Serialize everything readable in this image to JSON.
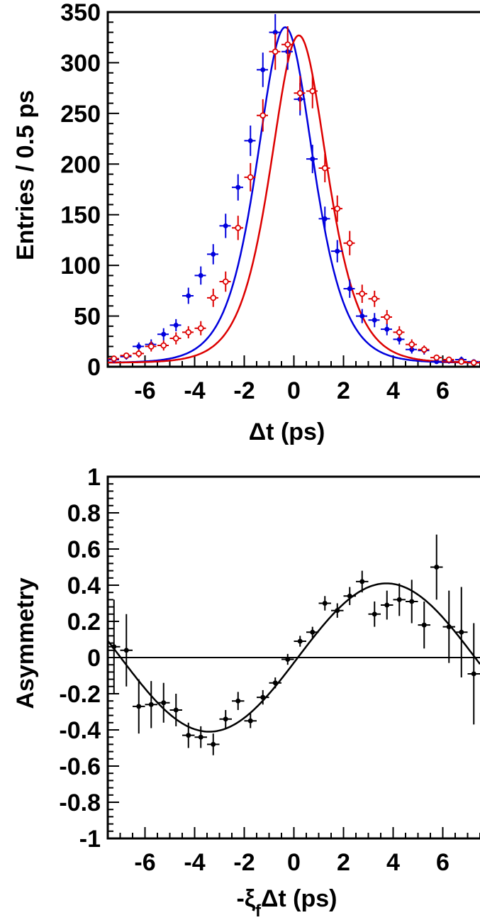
{
  "chart_data": [
    {
      "type": "scatter",
      "xlabel": "Δt (ps)",
      "ylabel": "Entries / 0.5 ps",
      "xlim": [
        -7.5,
        7.5
      ],
      "ylim": [
        0,
        350
      ],
      "xticks": [
        -6,
        -4,
        -2,
        0,
        2,
        4,
        6
      ],
      "yticks": [
        0,
        50,
        100,
        150,
        200,
        250,
        300,
        350
      ],
      "series": [
        {
          "color": "#0000dd",
          "marker": "filled-circle",
          "x": [
            -7.25,
            -6.75,
            -6.25,
            -5.75,
            -5.25,
            -4.75,
            -4.25,
            -3.75,
            -3.25,
            -2.75,
            -2.25,
            -1.75,
            -1.25,
            -0.75,
            -0.25,
            0.25,
            0.75,
            1.25,
            1.75,
            2.25,
            2.75,
            3.25,
            3.75,
            4.25,
            4.75,
            5.25,
            5.75,
            6.25,
            6.75,
            7.25
          ],
          "y": [
            7,
            10,
            20,
            22,
            32,
            41,
            70,
            90,
            111,
            139,
            177,
            223,
            293,
            330,
            311,
            264,
            205,
            146,
            114,
            77,
            50,
            46,
            37,
            27,
            17,
            16,
            5,
            6,
            7,
            5
          ],
          "err": [
            3,
            3,
            4,
            5,
            6,
            6,
            8,
            9,
            10,
            12,
            13,
            15,
            17,
            18,
            18,
            16,
            14,
            12,
            11,
            9,
            7,
            7,
            6,
            5,
            4,
            4,
            2,
            3,
            3,
            2
          ]
        },
        {
          "color": "#dd0000",
          "marker": "open-circle",
          "x": [
            -7.25,
            -6.75,
            -6.25,
            -5.75,
            -5.25,
            -4.75,
            -4.25,
            -3.75,
            -3.25,
            -2.75,
            -2.25,
            -1.75,
            -1.25,
            -0.75,
            -0.25,
            0.25,
            0.75,
            1.25,
            1.75,
            2.25,
            2.75,
            3.25,
            3.75,
            4.25,
            4.75,
            5.25,
            5.75,
            6.25,
            6.75,
            7.25
          ],
          "y": [
            8,
            11,
            13,
            20,
            21,
            28,
            34,
            38,
            68,
            84,
            137,
            187,
            248,
            311,
            318,
            270,
            272,
            196,
            156,
            122,
            72,
            67,
            49,
            34,
            22,
            17,
            9,
            7,
            5,
            4
          ],
          "err": [
            3,
            3,
            4,
            5,
            5,
            6,
            6,
            7,
            9,
            10,
            12,
            14,
            16,
            18,
            18,
            17,
            17,
            14,
            13,
            12,
            9,
            8,
            7,
            6,
            5,
            4,
            3,
            3,
            2,
            2
          ]
        }
      ]
    },
    {
      "type": "scatter",
      "xlabel_parts": [
        "-ξ",
        "f",
        "Δt (ps)"
      ],
      "ylabel": "Asymmetry",
      "xlim": [
        -7.5,
        7.5
      ],
      "ylim": [
        -1,
        1
      ],
      "xticks": [
        -6,
        -4,
        -2,
        0,
        2,
        4,
        6
      ],
      "yticks": [
        -1,
        -0.8,
        -0.6,
        -0.4,
        -0.2,
        0,
        0.2,
        0.4,
        0.6,
        0.8,
        1
      ],
      "ytick_labels": [
        "-1",
        "-0.8",
        "-0.6",
        "-0.4",
        "-0.2",
        "0",
        "0.2",
        "0.4",
        "0.6",
        "0.8",
        "1"
      ],
      "zero_line": true,
      "series": [
        {
          "color": "#000000",
          "marker": "filled-circle",
          "x": [
            -7.25,
            -6.75,
            -6.25,
            -5.75,
            -5.25,
            -4.75,
            -4.25,
            -3.75,
            -3.25,
            -2.75,
            -2.25,
            -1.75,
            -1.25,
            -0.75,
            -0.25,
            0.25,
            0.75,
            1.25,
            1.75,
            2.25,
            2.75,
            3.25,
            3.75,
            4.25,
            4.75,
            5.25,
            5.75,
            6.25,
            6.75,
            7.25
          ],
          "y": [
            0.06,
            0.04,
            -0.27,
            -0.26,
            -0.25,
            -0.29,
            -0.43,
            -0.44,
            -0.48,
            -0.34,
            -0.24,
            -0.35,
            -0.22,
            -0.14,
            -0.01,
            0.09,
            0.14,
            0.3,
            0.26,
            0.34,
            0.42,
            0.24,
            0.29,
            0.32,
            0.31,
            0.18,
            0.5,
            0.17,
            0.14,
            -0.09
          ],
          "err": [
            0.26,
            0.2,
            0.15,
            0.13,
            0.11,
            0.09,
            0.07,
            0.06,
            0.06,
            0.05,
            0.05,
            0.04,
            0.04,
            0.03,
            0.03,
            0.03,
            0.03,
            0.04,
            0.04,
            0.05,
            0.06,
            0.07,
            0.08,
            0.09,
            0.12,
            0.13,
            0.18,
            0.2,
            0.25,
            0.28
          ]
        }
      ],
      "curve": {
        "function": "sine",
        "amplitude": 0.41,
        "omega": 0.44,
        "phase": -0.07
      }
    }
  ]
}
